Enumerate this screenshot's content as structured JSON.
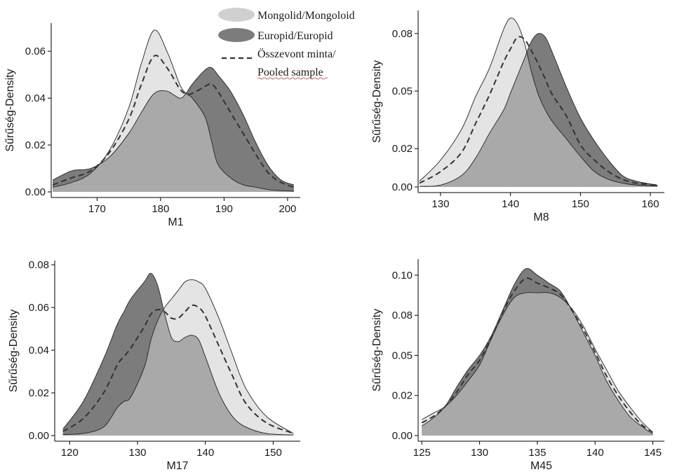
{
  "legend": {
    "mongolid_label": "Mongolid/Mongoloid",
    "europid_label": "Europid/Europid",
    "pooled_label_line1": "Összevont minta/",
    "pooled_label_line2": "Pooled sample"
  },
  "colors": {
    "mongolid_fill": "#e4e4e4",
    "europid_fill": "#7c7c7c",
    "overlap_fill": "#a9a9a9",
    "pooled_line": "#333333",
    "curve_stroke": "#222222"
  },
  "chart_data": [
    {
      "type": "area",
      "xlabel": "M1",
      "ylabel": "Sűrűség-Density",
      "xlim": [
        163,
        202
      ],
      "ylim": [
        0,
        0.072
      ],
      "xticks": [
        170,
        180,
        190,
        200
      ],
      "yticks": [
        0.0,
        0.02,
        0.04,
        0.06
      ],
      "ytick_labels": [
        "0.00",
        "0.02",
        "0.04",
        "0.06"
      ],
      "x": [
        163,
        166,
        169,
        172,
        175,
        177,
        179,
        181,
        183,
        184,
        185,
        187,
        188,
        189,
        191,
        193,
        195,
        197,
        199,
        201
      ],
      "series": [
        {
          "name": "Mongolid/Mongoloid",
          "values": [
            0.002,
            0.004,
            0.008,
            0.018,
            0.036,
            0.055,
            0.069,
            0.06,
            0.046,
            0.042,
            0.04,
            0.032,
            0.022,
            0.012,
            0.006,
            0.003,
            0.002,
            0.001,
            0.0005,
            0.0003
          ]
        },
        {
          "name": "Europid/Europid",
          "values": [
            0.005,
            0.009,
            0.01,
            0.015,
            0.025,
            0.034,
            0.042,
            0.043,
            0.04,
            0.042,
            0.046,
            0.052,
            0.053,
            0.05,
            0.043,
            0.033,
            0.021,
            0.011,
            0.005,
            0.003
          ]
        },
        {
          "name": "Összevont minta/ Pooled sample",
          "values": [
            0.003,
            0.006,
            0.009,
            0.017,
            0.031,
            0.046,
            0.058,
            0.053,
            0.044,
            0.042,
            0.042,
            0.045,
            0.046,
            0.043,
            0.034,
            0.025,
            0.016,
            0.008,
            0.004,
            0.002
          ]
        }
      ]
    },
    {
      "type": "area",
      "xlabel": "M8",
      "ylabel": "Sűrűség-Density",
      "xlim": [
        127,
        162
      ],
      "ylim": [
        0,
        0.092
      ],
      "xticks": [
        130,
        140,
        150,
        160
      ],
      "yticks": [
        0.0,
        0.02,
        0.05,
        0.08
      ],
      "ytick_labels": [
        "0.00",
        "0.02",
        "0.05",
        "0.08"
      ],
      "x": [
        127,
        130,
        133,
        135,
        137,
        139,
        140,
        141,
        142,
        143,
        144,
        145,
        146,
        148,
        150,
        152,
        154,
        156,
        158,
        161
      ],
      "series": [
        {
          "name": "Mongolid/Mongoloid",
          "values": [
            0.003,
            0.014,
            0.03,
            0.047,
            0.062,
            0.082,
            0.088,
            0.085,
            0.075,
            0.06,
            0.048,
            0.04,
            0.034,
            0.025,
            0.016,
            0.008,
            0.004,
            0.002,
            0.001,
            0.0005
          ]
        },
        {
          "name": "Europid/Europid",
          "values": [
            0.0003,
            0.001,
            0.006,
            0.015,
            0.028,
            0.04,
            0.049,
            0.058,
            0.067,
            0.076,
            0.08,
            0.078,
            0.07,
            0.052,
            0.036,
            0.024,
            0.014,
            0.006,
            0.003,
            0.001
          ]
        },
        {
          "name": "Összevont minta/ Pooled sample",
          "values": [
            0.002,
            0.008,
            0.018,
            0.033,
            0.048,
            0.065,
            0.072,
            0.078,
            0.077,
            0.071,
            0.064,
            0.056,
            0.048,
            0.037,
            0.022,
            0.014,
            0.008,
            0.004,
            0.002,
            0.001
          ]
        }
      ]
    },
    {
      "type": "area",
      "xlabel": "M17",
      "ylabel": "Sűrűség-Density",
      "xlim": [
        118,
        154
      ],
      "ylim": [
        0,
        0.082
      ],
      "xticks": [
        120,
        130,
        140,
        150
      ],
      "yticks": [
        0.0,
        0.02,
        0.04,
        0.06,
        0.08
      ],
      "ytick_labels": [
        "0.00",
        "0.02",
        "0.04",
        "0.06",
        "0.08"
      ],
      "x": [
        119,
        122,
        125,
        127,
        128,
        129,
        131,
        132,
        133,
        134,
        135,
        136,
        137,
        138,
        139,
        140,
        142,
        144,
        146,
        149,
        153
      ],
      "series": [
        {
          "name": "Mongolid/Mongoloid",
          "values": [
            0.0005,
            0.001,
            0.004,
            0.013,
            0.016,
            0.018,
            0.032,
            0.045,
            0.054,
            0.06,
            0.064,
            0.068,
            0.072,
            0.073,
            0.072,
            0.069,
            0.055,
            0.038,
            0.022,
            0.009,
            0.001
          ]
        },
        {
          "name": "Europid/Europid",
          "values": [
            0.003,
            0.016,
            0.036,
            0.052,
            0.058,
            0.064,
            0.072,
            0.076,
            0.07,
            0.057,
            0.046,
            0.044,
            0.046,
            0.047,
            0.045,
            0.037,
            0.02,
            0.009,
            0.004,
            0.001,
            0.0003
          ]
        },
        {
          "name": "Összevont minta/ Pooled sample",
          "values": [
            0.002,
            0.008,
            0.02,
            0.033,
            0.037,
            0.041,
            0.051,
            0.057,
            0.059,
            0.058,
            0.055,
            0.055,
            0.058,
            0.061,
            0.06,
            0.056,
            0.042,
            0.028,
            0.015,
            0.006,
            0.001
          ]
        }
      ]
    },
    {
      "type": "area",
      "xlabel": "M45",
      "ylabel": "Sűrűség-Density",
      "xlim": [
        124.8,
        146
      ],
      "ylim": [
        0,
        0.11
      ],
      "xticks": [
        125,
        130,
        135,
        140,
        145
      ],
      "yticks": [
        0.0,
        0.025,
        0.05,
        0.075,
        0.1
      ],
      "ytick_labels": [
        "0.00",
        "0.02",
        "0.05",
        "0.08",
        "0.10"
      ],
      "x": [
        125,
        126,
        127,
        128,
        129,
        130,
        131,
        132,
        133,
        134,
        135,
        136,
        137,
        138,
        139,
        140,
        141,
        142,
        143,
        144,
        145
      ],
      "series": [
        {
          "name": "Mongolid/Mongoloid",
          "values": [
            0.01,
            0.014,
            0.018,
            0.025,
            0.034,
            0.044,
            0.06,
            0.075,
            0.086,
            0.089,
            0.089,
            0.089,
            0.086,
            0.079,
            0.068,
            0.054,
            0.041,
            0.028,
            0.018,
            0.009,
            0.002
          ]
        },
        {
          "name": "Europid/Europid",
          "values": [
            0.006,
            0.011,
            0.018,
            0.03,
            0.041,
            0.05,
            0.062,
            0.078,
            0.094,
            0.104,
            0.1,
            0.095,
            0.09,
            0.078,
            0.064,
            0.05,
            0.034,
            0.022,
            0.012,
            0.006,
            0.001
          ]
        },
        {
          "name": "Összevont minta/ Pooled sample",
          "values": [
            0.008,
            0.012,
            0.018,
            0.027,
            0.038,
            0.047,
            0.061,
            0.077,
            0.09,
            0.098,
            0.095,
            0.092,
            0.088,
            0.078,
            0.066,
            0.052,
            0.037,
            0.025,
            0.015,
            0.007,
            0.002
          ]
        }
      ]
    }
  ]
}
